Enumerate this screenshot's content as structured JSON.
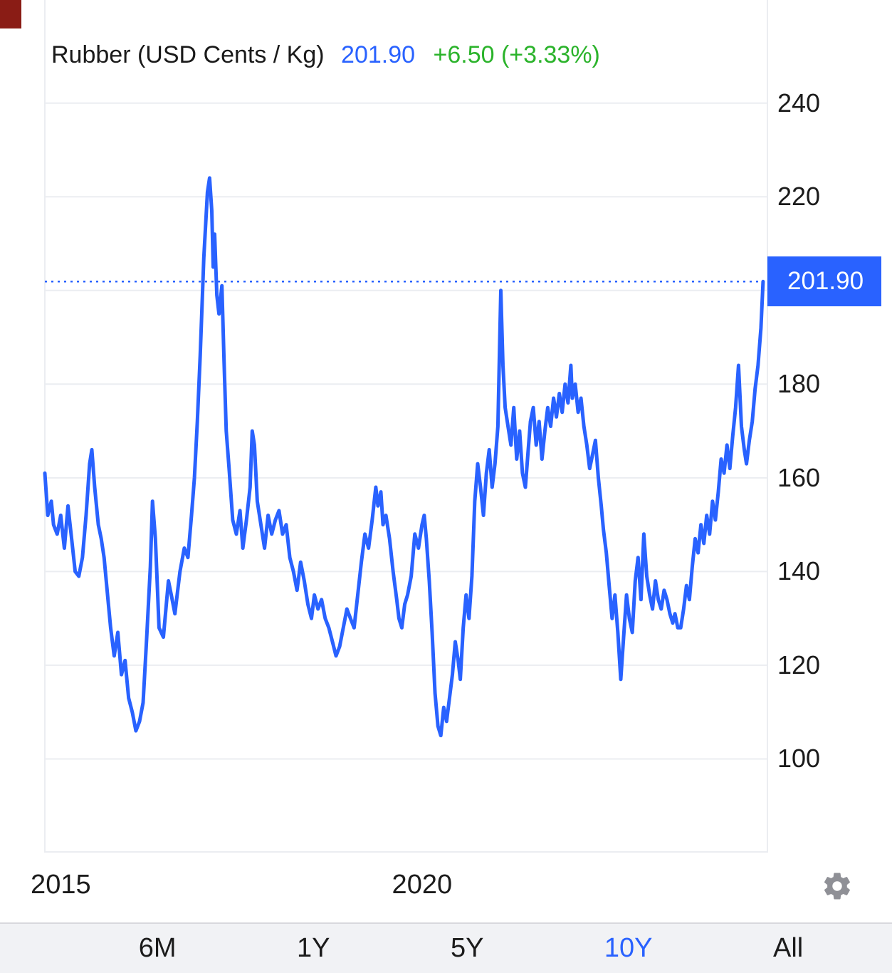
{
  "header": {
    "instrument": "Rubber (USD Cents / Kg)",
    "price": "201.90",
    "change": "+6.50 (+3.33%)"
  },
  "colors": {
    "line": "#2962FF",
    "accent_blue": "#2962FF",
    "change_green": "#2BB32B",
    "grid": "#ebedf1",
    "axis_text": "#1b1b1b",
    "toolbar_bg": "#f1f2f5",
    "toolbar_border": "#d8d8dd",
    "gear": "#8f9096",
    "price_tag_bg": "#2962FF",
    "price_tag_text": "#ffffff",
    "artifact": "#8a1c15"
  },
  "toolbar": {
    "ranges": [
      {
        "label": "6M",
        "selected": false
      },
      {
        "label": "1Y",
        "selected": false
      },
      {
        "label": "5Y",
        "selected": false
      },
      {
        "label": "10Y",
        "selected": true
      },
      {
        "label": "All",
        "selected": false
      }
    ]
  },
  "chart_data": {
    "type": "line",
    "title": "Rubber (USD Cents / Kg)",
    "ylabel": "USD Cents / Kg",
    "current_price": 201.9,
    "change_abs": 6.5,
    "change_pct": 3.33,
    "xlim": [
      2014.78,
      2024.78
    ],
    "ylim": [
      80,
      262
    ],
    "yticks": [
      100,
      120,
      140,
      160,
      180,
      200,
      220,
      240
    ],
    "xticks": [
      {
        "value": 2015,
        "label": "2015"
      },
      {
        "value": 2020,
        "label": "2020"
      }
    ],
    "grid": true,
    "legend": "none",
    "series": [
      {
        "name": "Rubber",
        "points": [
          [
            2014.78,
            161
          ],
          [
            2014.82,
            152
          ],
          [
            2014.87,
            155
          ],
          [
            2014.9,
            150
          ],
          [
            2014.95,
            148
          ],
          [
            2015.0,
            152
          ],
          [
            2015.05,
            145
          ],
          [
            2015.1,
            154
          ],
          [
            2015.15,
            147
          ],
          [
            2015.2,
            140
          ],
          [
            2015.25,
            139
          ],
          [
            2015.3,
            143
          ],
          [
            2015.35,
            152
          ],
          [
            2015.4,
            163
          ],
          [
            2015.43,
            166
          ],
          [
            2015.47,
            158
          ],
          [
            2015.52,
            150
          ],
          [
            2015.56,
            147
          ],
          [
            2015.6,
            143
          ],
          [
            2015.66,
            133
          ],
          [
            2015.69,
            128
          ],
          [
            2015.74,
            122
          ],
          [
            2015.79,
            127
          ],
          [
            2015.84,
            118
          ],
          [
            2015.89,
            121
          ],
          [
            2015.94,
            113
          ],
          [
            2015.99,
            110
          ],
          [
            2016.04,
            106
          ],
          [
            2016.09,
            108
          ],
          [
            2016.14,
            112
          ],
          [
            2016.19,
            126
          ],
          [
            2016.24,
            141
          ],
          [
            2016.27,
            155
          ],
          [
            2016.31,
            147
          ],
          [
            2016.36,
            128
          ],
          [
            2016.42,
            126
          ],
          [
            2016.49,
            138
          ],
          [
            2016.53,
            135
          ],
          [
            2016.58,
            131
          ],
          [
            2016.65,
            140
          ],
          [
            2016.71,
            145
          ],
          [
            2016.76,
            143
          ],
          [
            2016.81,
            152
          ],
          [
            2016.85,
            160
          ],
          [
            2016.89,
            172
          ],
          [
            2016.93,
            186
          ],
          [
            2016.98,
            207
          ],
          [
            2017.03,
            221
          ],
          [
            2017.06,
            224
          ],
          [
            2017.09,
            217
          ],
          [
            2017.11,
            205
          ],
          [
            2017.13,
            212
          ],
          [
            2017.16,
            199
          ],
          [
            2017.19,
            195
          ],
          [
            2017.23,
            201
          ],
          [
            2017.26,
            185
          ],
          [
            2017.29,
            170
          ],
          [
            2017.33,
            162
          ],
          [
            2017.38,
            151
          ],
          [
            2017.43,
            148
          ],
          [
            2017.48,
            153
          ],
          [
            2017.52,
            145
          ],
          [
            2017.57,
            151
          ],
          [
            2017.62,
            158
          ],
          [
            2017.65,
            170
          ],
          [
            2017.68,
            167
          ],
          [
            2017.72,
            155
          ],
          [
            2017.77,
            150
          ],
          [
            2017.82,
            145
          ],
          [
            2017.87,
            152
          ],
          [
            2017.92,
            148
          ],
          [
            2017.97,
            151
          ],
          [
            2018.02,
            153
          ],
          [
            2018.07,
            148
          ],
          [
            2018.12,
            150
          ],
          [
            2018.17,
            143
          ],
          [
            2018.22,
            140
          ],
          [
            2018.27,
            136
          ],
          [
            2018.32,
            142
          ],
          [
            2018.37,
            138
          ],
          [
            2018.42,
            133
          ],
          [
            2018.47,
            130
          ],
          [
            2018.51,
            135
          ],
          [
            2018.56,
            132
          ],
          [
            2018.61,
            134
          ],
          [
            2018.66,
            130
          ],
          [
            2018.71,
            128
          ],
          [
            2018.76,
            125
          ],
          [
            2018.81,
            122
          ],
          [
            2018.86,
            124
          ],
          [
            2018.91,
            128
          ],
          [
            2018.96,
            132
          ],
          [
            2019.01,
            130
          ],
          [
            2019.06,
            128
          ],
          [
            2019.11,
            135
          ],
          [
            2019.16,
            142
          ],
          [
            2019.21,
            148
          ],
          [
            2019.26,
            145
          ],
          [
            2019.31,
            151
          ],
          [
            2019.36,
            158
          ],
          [
            2019.39,
            154
          ],
          [
            2019.43,
            157
          ],
          [
            2019.46,
            150
          ],
          [
            2019.5,
            152
          ],
          [
            2019.55,
            147
          ],
          [
            2019.6,
            140
          ],
          [
            2019.65,
            134
          ],
          [
            2019.68,
            130
          ],
          [
            2019.72,
            128
          ],
          [
            2019.76,
            133
          ],
          [
            2019.8,
            135
          ],
          [
            2019.85,
            139
          ],
          [
            2019.9,
            148
          ],
          [
            2019.95,
            145
          ],
          [
            2020.0,
            150
          ],
          [
            2020.03,
            152
          ],
          [
            2020.06,
            147
          ],
          [
            2020.1,
            138
          ],
          [
            2020.14,
            127
          ],
          [
            2020.18,
            114
          ],
          [
            2020.22,
            107
          ],
          [
            2020.26,
            105
          ],
          [
            2020.3,
            111
          ],
          [
            2020.34,
            108
          ],
          [
            2020.38,
            113
          ],
          [
            2020.42,
            118
          ],
          [
            2020.46,
            125
          ],
          [
            2020.5,
            121
          ],
          [
            2020.53,
            117
          ],
          [
            2020.57,
            128
          ],
          [
            2020.61,
            135
          ],
          [
            2020.65,
            130
          ],
          [
            2020.69,
            139
          ],
          [
            2020.73,
            155
          ],
          [
            2020.77,
            163
          ],
          [
            2020.81,
            158
          ],
          [
            2020.85,
            152
          ],
          [
            2020.89,
            161
          ],
          [
            2020.93,
            166
          ],
          [
            2020.97,
            158
          ],
          [
            2021.01,
            163
          ],
          [
            2021.05,
            171
          ],
          [
            2021.09,
            200
          ],
          [
            2021.12,
            184
          ],
          [
            2021.15,
            175
          ],
          [
            2021.19,
            171
          ],
          [
            2021.23,
            167
          ],
          [
            2021.27,
            175
          ],
          [
            2021.31,
            164
          ],
          [
            2021.35,
            170
          ],
          [
            2021.39,
            161
          ],
          [
            2021.43,
            158
          ],
          [
            2021.47,
            166
          ],
          [
            2021.5,
            172
          ],
          [
            2021.54,
            175
          ],
          [
            2021.58,
            167
          ],
          [
            2021.62,
            172
          ],
          [
            2021.66,
            164
          ],
          [
            2021.7,
            170
          ],
          [
            2021.74,
            175
          ],
          [
            2021.78,
            171
          ],
          [
            2021.82,
            177
          ],
          [
            2021.86,
            173
          ],
          [
            2021.9,
            178
          ],
          [
            2021.94,
            174
          ],
          [
            2021.98,
            180
          ],
          [
            2022.02,
            176
          ],
          [
            2022.06,
            184
          ],
          [
            2022.08,
            177
          ],
          [
            2022.12,
            180
          ],
          [
            2022.16,
            174
          ],
          [
            2022.2,
            177
          ],
          [
            2022.24,
            171
          ],
          [
            2022.28,
            167
          ],
          [
            2022.32,
            162
          ],
          [
            2022.36,
            165
          ],
          [
            2022.4,
            168
          ],
          [
            2022.44,
            160
          ],
          [
            2022.48,
            154
          ],
          [
            2022.51,
            149
          ],
          [
            2022.55,
            144
          ],
          [
            2022.59,
            137
          ],
          [
            2022.63,
            130
          ],
          [
            2022.67,
            135
          ],
          [
            2022.71,
            127
          ],
          [
            2022.75,
            117
          ],
          [
            2022.79,
            126
          ],
          [
            2022.83,
            135
          ],
          [
            2022.87,
            130
          ],
          [
            2022.91,
            127
          ],
          [
            2022.95,
            138
          ],
          [
            2022.99,
            143
          ],
          [
            2023.03,
            134
          ],
          [
            2023.07,
            148
          ],
          [
            2023.11,
            139
          ],
          [
            2023.15,
            135
          ],
          [
            2023.19,
            132
          ],
          [
            2023.23,
            138
          ],
          [
            2023.27,
            134
          ],
          [
            2023.31,
            132
          ],
          [
            2023.35,
            136
          ],
          [
            2023.39,
            134
          ],
          [
            2023.43,
            131
          ],
          [
            2023.47,
            129
          ],
          [
            2023.5,
            131
          ],
          [
            2023.54,
            128
          ],
          [
            2023.58,
            128
          ],
          [
            2023.62,
            132
          ],
          [
            2023.66,
            137
          ],
          [
            2023.7,
            134
          ],
          [
            2023.74,
            141
          ],
          [
            2023.78,
            147
          ],
          [
            2023.82,
            144
          ],
          [
            2023.86,
            150
          ],
          [
            2023.9,
            146
          ],
          [
            2023.94,
            152
          ],
          [
            2023.98,
            148
          ],
          [
            2024.02,
            155
          ],
          [
            2024.06,
            151
          ],
          [
            2024.1,
            157
          ],
          [
            2024.14,
            164
          ],
          [
            2024.18,
            161
          ],
          [
            2024.22,
            167
          ],
          [
            2024.26,
            162
          ],
          [
            2024.3,
            169
          ],
          [
            2024.34,
            175
          ],
          [
            2024.38,
            184
          ],
          [
            2024.42,
            171
          ],
          [
            2024.46,
            166
          ],
          [
            2024.49,
            163
          ],
          [
            2024.53,
            168
          ],
          [
            2024.57,
            172
          ],
          [
            2024.61,
            179
          ],
          [
            2024.65,
            184
          ],
          [
            2024.69,
            192
          ],
          [
            2024.72,
            201.9
          ]
        ]
      }
    ]
  }
}
